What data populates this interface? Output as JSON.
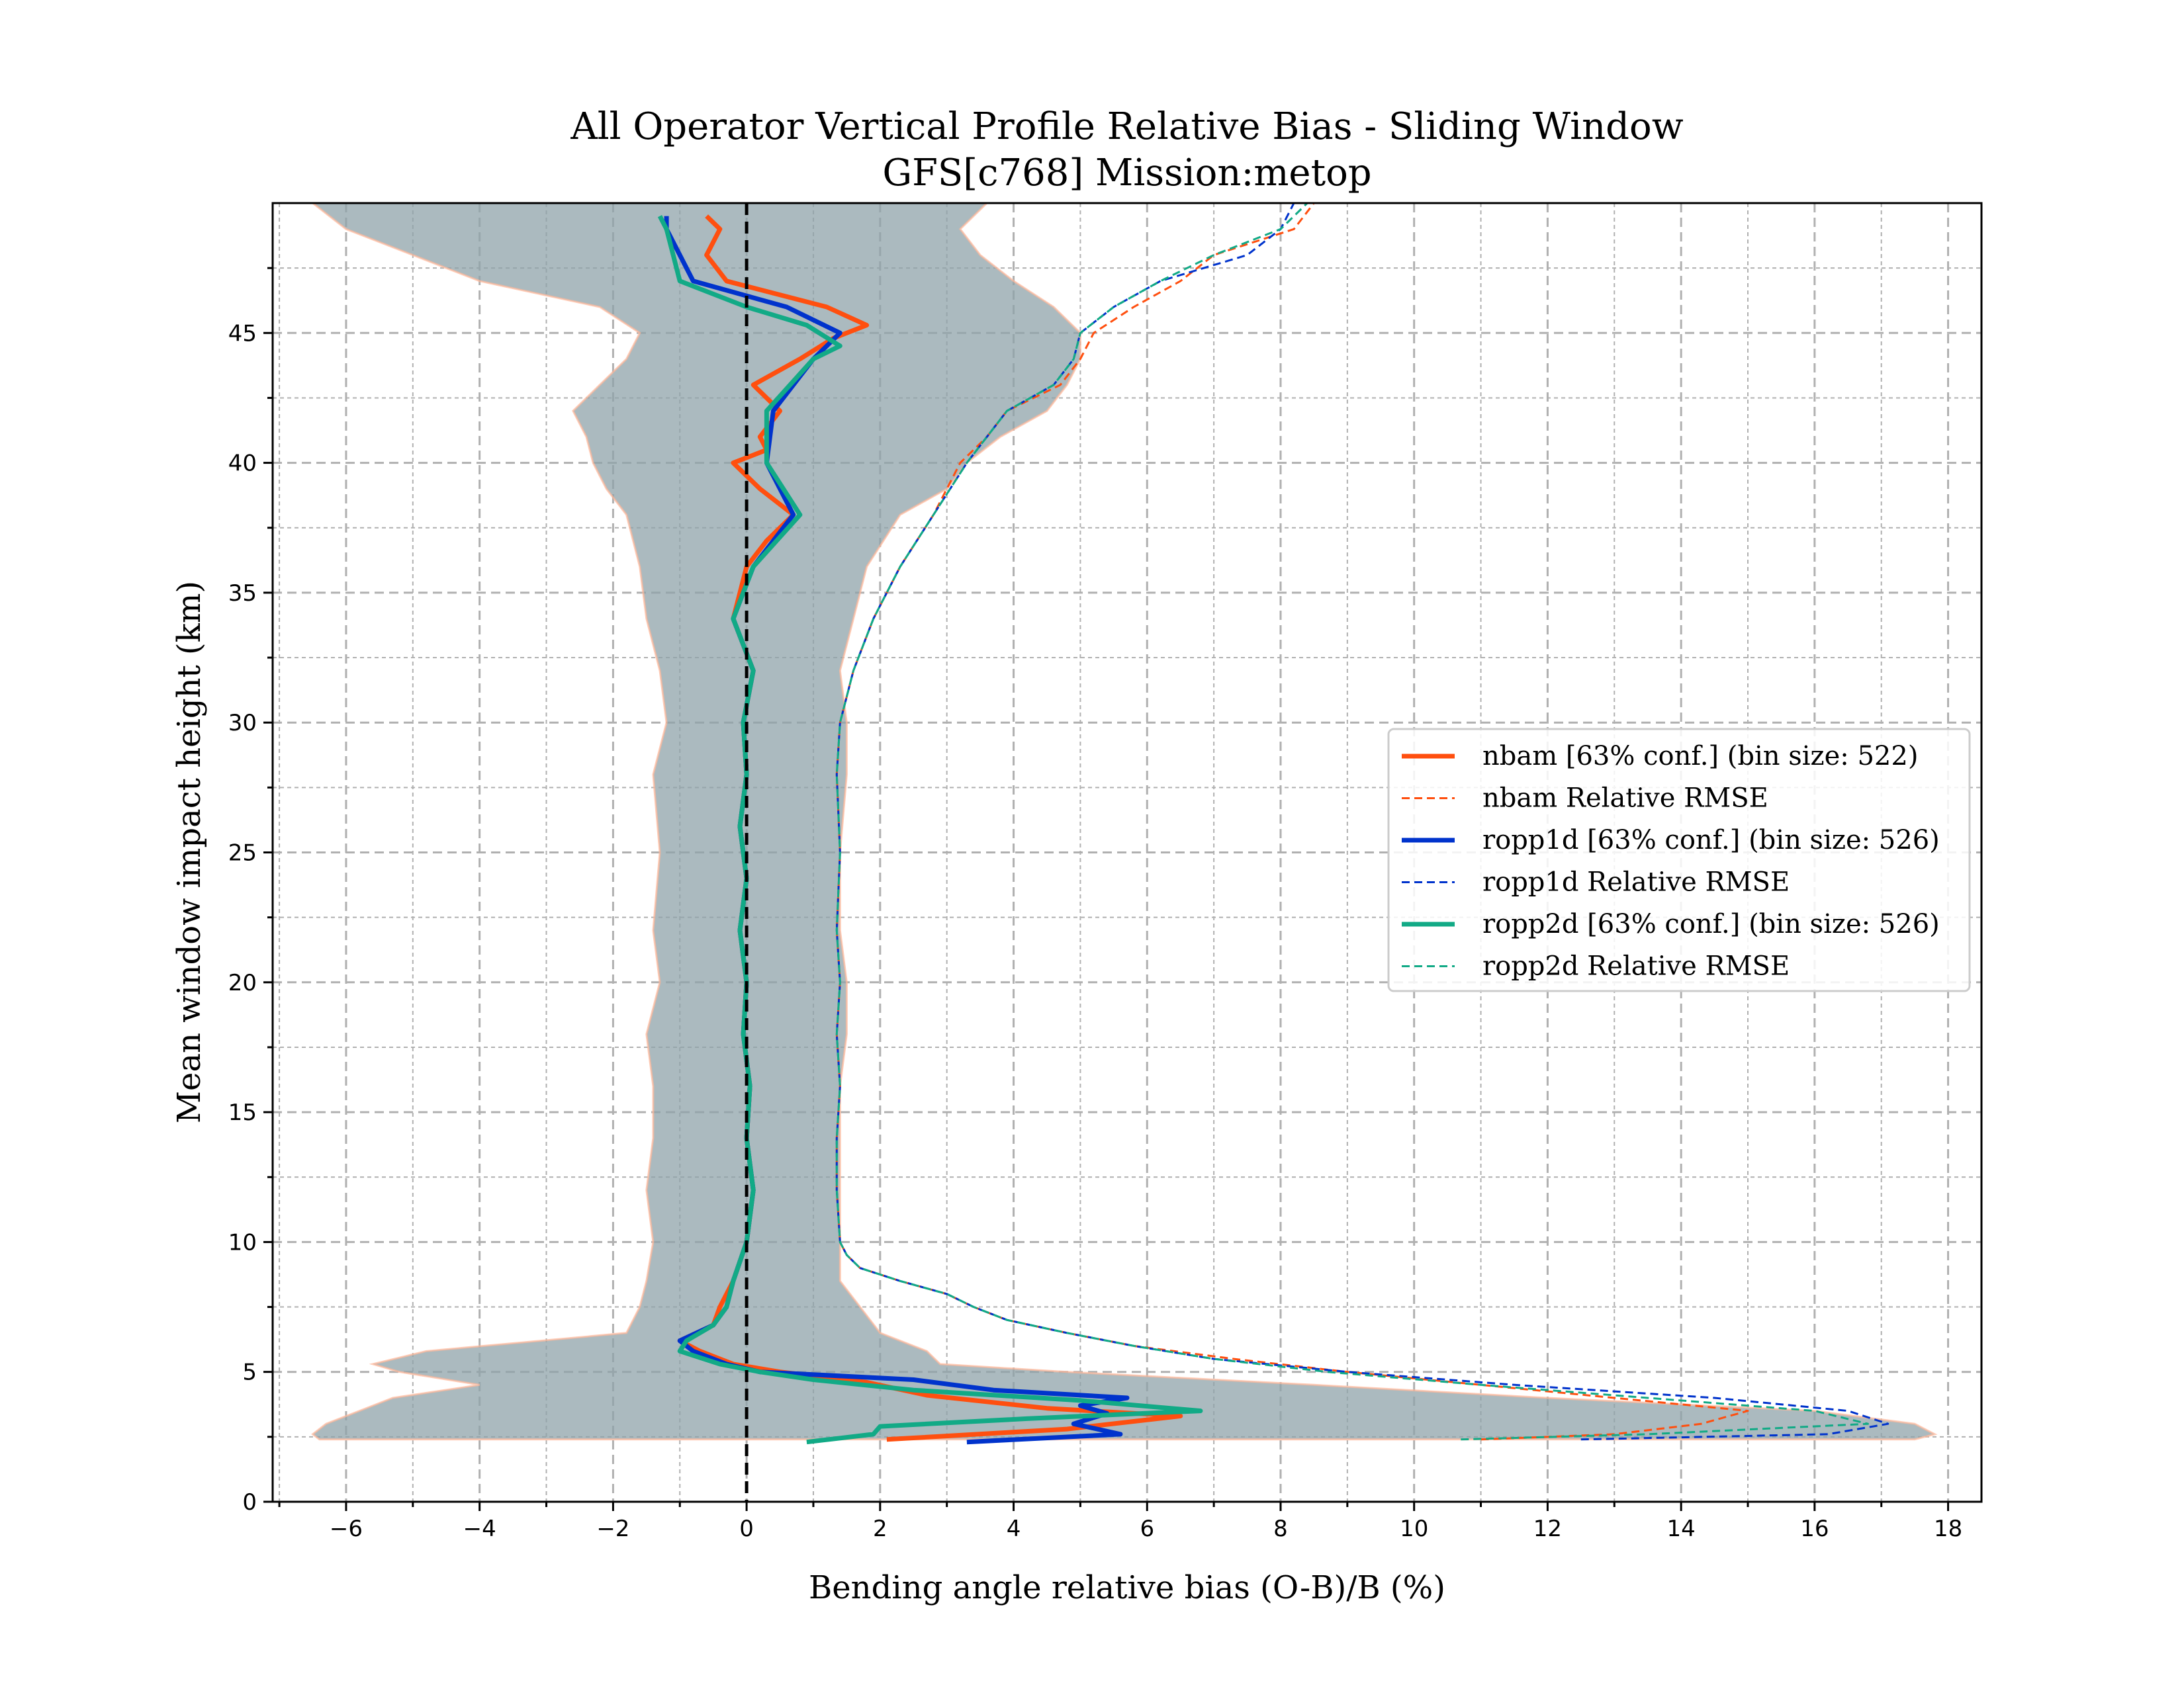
{
  "chart_data": {
    "type": "line",
    "title": "All Operator Vertical Profile Relative Bias - Sliding Window",
    "subtitle": "GFS[c768] Mission:metop",
    "xlabel": "Bending angle relative bias (O-B)/B (%)",
    "ylabel": "Mean window impact height (km)",
    "xlim": [
      -7.1,
      18.5
    ],
    "ylim": [
      0,
      50
    ],
    "xticks": [
      -6,
      -4,
      -2,
      0,
      2,
      4,
      6,
      8,
      10,
      12,
      14,
      16,
      18
    ],
    "yticks": [
      0,
      5,
      10,
      15,
      20,
      25,
      30,
      35,
      40,
      45
    ],
    "xtick_labels": [
      "−6",
      "−4",
      "−2",
      "0",
      "2",
      "4",
      "6",
      "8",
      "10",
      "12",
      "14",
      "16",
      "18"
    ],
    "ytick_labels": [
      "0",
      "5",
      "10",
      "15",
      "20",
      "25",
      "30",
      "35",
      "40",
      "45"
    ],
    "grid": true,
    "reference_line_x": 0,
    "legend_placement": "center-right",
    "legend": [
      {
        "label": "nbam [63% conf.] (bin size: 522)",
        "color": "#ff4f0f",
        "style": "solid"
      },
      {
        "label": "nbam Relative RMSE",
        "color": "#ff4f0f",
        "style": "dashed"
      },
      {
        "label": "ropp1d [63% conf.] (bin size: 526)",
        "color": "#0033cc",
        "style": "solid"
      },
      {
        "label": "ropp1d Relative RMSE",
        "color": "#0033cc",
        "style": "dashed"
      },
      {
        "label": "ropp2d [63% conf.] (bin size: 526)",
        "color": "#12aa86",
        "style": "solid"
      },
      {
        "label": "ropp2d Relative RMSE",
        "color": "#12aa86",
        "style": "dashed"
      }
    ],
    "spread_band": {
      "color": "#8fa3aa",
      "y": [
        2.4,
        2.6,
        3.0,
        3.5,
        4.0,
        4.5,
        5.0,
        5.3,
        5.8,
        6.5,
        7.5,
        8.5,
        10,
        12,
        14,
        16,
        18,
        20,
        22,
        25,
        28,
        30,
        32,
        34,
        36,
        38,
        39,
        40,
        41,
        42,
        43,
        44,
        45,
        46,
        47,
        48,
        49,
        50
      ],
      "left": [
        -6.4,
        -6.5,
        -6.3,
        -5.8,
        -5.3,
        -4.0,
        -5.2,
        -5.6,
        -4.8,
        -1.8,
        -1.6,
        -1.5,
        -1.4,
        -1.5,
        -1.4,
        -1.4,
        -1.5,
        -1.3,
        -1.4,
        -1.3,
        -1.4,
        -1.2,
        -1.3,
        -1.5,
        -1.6,
        -1.8,
        -2.1,
        -2.3,
        -2.4,
        -2.6,
        -2.2,
        -1.8,
        -1.6,
        -2.2,
        -4.0,
        -5.0,
        -6.0,
        -6.5
      ],
      "right": [
        17.5,
        17.8,
        17.5,
        16.0,
        12.0,
        8.5,
        4.8,
        2.9,
        2.7,
        2.0,
        1.7,
        1.4,
        1.4,
        1.4,
        1.4,
        1.4,
        1.5,
        1.5,
        1.4,
        1.4,
        1.5,
        1.5,
        1.4,
        1.6,
        1.8,
        2.3,
        3.0,
        3.3,
        3.8,
        4.5,
        4.8,
        5.0,
        5.0,
        4.6,
        4.0,
        3.5,
        3.2,
        3.6
      ]
    },
    "series": [
      {
        "name": "nbam [63% conf.] (bin size: 522)",
        "color": "#ff4f0f",
        "style": "solid",
        "y": [
          2.4,
          2.8,
          3.3,
          3.6,
          4.1,
          4.6,
          5.0,
          5.3,
          5.8,
          6.2,
          6.8,
          7.5,
          8.5,
          10,
          12,
          14,
          16,
          18,
          20,
          22,
          24,
          26,
          28,
          30,
          32,
          34,
          36,
          37,
          38,
          39,
          40,
          40.5,
          41,
          42,
          43,
          44,
          44.8,
          45.3,
          46,
          47,
          48,
          49,
          49.5
        ],
        "x": [
          2.1,
          4.8,
          6.5,
          4.5,
          2.7,
          1.8,
          0.5,
          -0.2,
          -0.7,
          -1.0,
          -0.5,
          -0.4,
          -0.2,
          0.0,
          0.1,
          0.0,
          0.05,
          -0.05,
          0.0,
          -0.1,
          0.0,
          -0.1,
          0.0,
          -0.05,
          0.1,
          -0.2,
          0.0,
          0.3,
          0.7,
          0.2,
          -0.2,
          0.3,
          0.2,
          0.5,
          0.1,
          0.8,
          1.3,
          1.8,
          1.2,
          -0.3,
          -0.6,
          -0.4,
          -0.6
        ]
      },
      {
        "name": "nbam Relative RMSE",
        "color": "#ff4f0f",
        "style": "dashed",
        "y": [
          2.4,
          2.6,
          3.0,
          3.5,
          4.0,
          4.5,
          5.0,
          5.5,
          6.0,
          6.5,
          7.0,
          7.5,
          8.0,
          8.5,
          9.0,
          9.5,
          10,
          12,
          14,
          16,
          18,
          20,
          22,
          25,
          28,
          30,
          32,
          34,
          36,
          38,
          40,
          41,
          42,
          43,
          44,
          45,
          46,
          47,
          48,
          49,
          50
        ],
        "x": [
          11.0,
          13.0,
          14.3,
          15.0,
          13.0,
          11.0,
          9.0,
          7.3,
          5.8,
          4.8,
          3.9,
          3.4,
          3.0,
          2.3,
          1.7,
          1.5,
          1.4,
          1.35,
          1.35,
          1.4,
          1.35,
          1.4,
          1.35,
          1.4,
          1.35,
          1.4,
          1.6,
          1.9,
          2.3,
          2.8,
          3.2,
          3.6,
          3.9,
          4.7,
          5.0,
          5.2,
          5.8,
          6.5,
          7.0,
          8.2,
          8.5
        ]
      },
      {
        "name": "ropp1d [63% conf.] (bin size: 526)",
        "color": "#0033cc",
        "style": "solid",
        "y": [
          2.3,
          2.6,
          3.0,
          3.4,
          3.7,
          4.0,
          4.3,
          4.7,
          5.0,
          5.3,
          5.8,
          6.2,
          6.8,
          7.5,
          8.5,
          10,
          12,
          14,
          16,
          18,
          20,
          22,
          24,
          26,
          28,
          30,
          32,
          34,
          36,
          38,
          40,
          42,
          44,
          45,
          46,
          47,
          48,
          49,
          49.5
        ],
        "x": [
          3.3,
          5.6,
          4.9,
          5.4,
          5.0,
          5.7,
          3.7,
          2.5,
          0.2,
          -0.3,
          -0.8,
          -1.0,
          -0.5,
          -0.3,
          -0.2,
          0.0,
          0.1,
          0.0,
          0.05,
          -0.05,
          0.0,
          -0.1,
          0.0,
          -0.1,
          0.0,
          -0.05,
          0.1,
          -0.2,
          0.1,
          0.7,
          0.3,
          0.4,
          1.0,
          1.4,
          0.6,
          -0.8,
          -1.0,
          -1.2,
          -1.2
        ]
      },
      {
        "name": "ropp1d Relative RMSE",
        "color": "#0033cc",
        "style": "dashed",
        "y": [
          2.4,
          2.6,
          3.0,
          3.5,
          4.0,
          4.5,
          5.0,
          5.5,
          6.0,
          6.5,
          7.0,
          7.5,
          8.0,
          8.5,
          9.0,
          9.5,
          10,
          12,
          14,
          16,
          18,
          20,
          22,
          25,
          28,
          30,
          32,
          34,
          36,
          38,
          40,
          41,
          42,
          43,
          44,
          45,
          46,
          47,
          48,
          49,
          50
        ],
        "x": [
          12.5,
          16.2,
          17.1,
          16.5,
          14.5,
          11.5,
          9.0,
          7.0,
          5.8,
          4.8,
          3.9,
          3.4,
          3.0,
          2.3,
          1.7,
          1.5,
          1.4,
          1.35,
          1.35,
          1.4,
          1.35,
          1.4,
          1.35,
          1.4,
          1.35,
          1.4,
          1.6,
          1.9,
          2.3,
          2.8,
          3.3,
          3.6,
          3.9,
          4.6,
          4.9,
          5.0,
          5.5,
          6.2,
          7.5,
          8.0,
          8.2
        ]
      },
      {
        "name": "ropp2d [63% conf.] (bin size: 526)",
        "color": "#12aa86",
        "style": "solid",
        "y": [
          2.3,
          2.6,
          2.9,
          3.2,
          3.5,
          3.9,
          4.3,
          4.7,
          5.0,
          5.3,
          5.8,
          6.2,
          6.8,
          7.5,
          8.5,
          10,
          12,
          14,
          16,
          18,
          20,
          22,
          24,
          26,
          28,
          30,
          32,
          34,
          36,
          38,
          40,
          42,
          44,
          44.5,
          45.3,
          46,
          47,
          48,
          49,
          49.5
        ],
        "x": [
          0.9,
          1.9,
          2.0,
          4.2,
          6.8,
          5.0,
          2.5,
          1.0,
          0.2,
          -0.4,
          -1.0,
          -0.9,
          -0.5,
          -0.3,
          -0.2,
          0.0,
          0.1,
          0.0,
          0.05,
          -0.05,
          0.0,
          -0.1,
          0.0,
          -0.1,
          0.0,
          -0.05,
          0.1,
          -0.2,
          0.1,
          0.8,
          0.3,
          0.3,
          1.0,
          1.4,
          0.9,
          0.0,
          -1.0,
          -1.1,
          -1.2,
          -1.3
        ]
      },
      {
        "name": "ropp2d Relative RMSE",
        "color": "#12aa86",
        "style": "dashed",
        "y": [
          2.4,
          2.6,
          3.0,
          3.5,
          4.0,
          4.5,
          5.0,
          5.5,
          6.0,
          6.5,
          7.0,
          7.5,
          8.0,
          8.5,
          9.0,
          9.5,
          10,
          12,
          14,
          16,
          18,
          20,
          22,
          25,
          28,
          30,
          32,
          34,
          36,
          38,
          40,
          41,
          42,
          43,
          44,
          45,
          46,
          47,
          48,
          49,
          50
        ],
        "x": [
          10.7,
          13.5,
          16.8,
          16.0,
          13.5,
          11.0,
          8.7,
          7.0,
          5.8,
          4.8,
          3.9,
          3.4,
          3.0,
          2.3,
          1.7,
          1.5,
          1.4,
          1.35,
          1.35,
          1.4,
          1.35,
          1.4,
          1.35,
          1.4,
          1.35,
          1.4,
          1.6,
          1.9,
          2.3,
          2.8,
          3.3,
          3.6,
          3.9,
          4.6,
          4.9,
          5.0,
          5.5,
          6.2,
          7.0,
          8.0,
          8.4
        ]
      }
    ]
  }
}
